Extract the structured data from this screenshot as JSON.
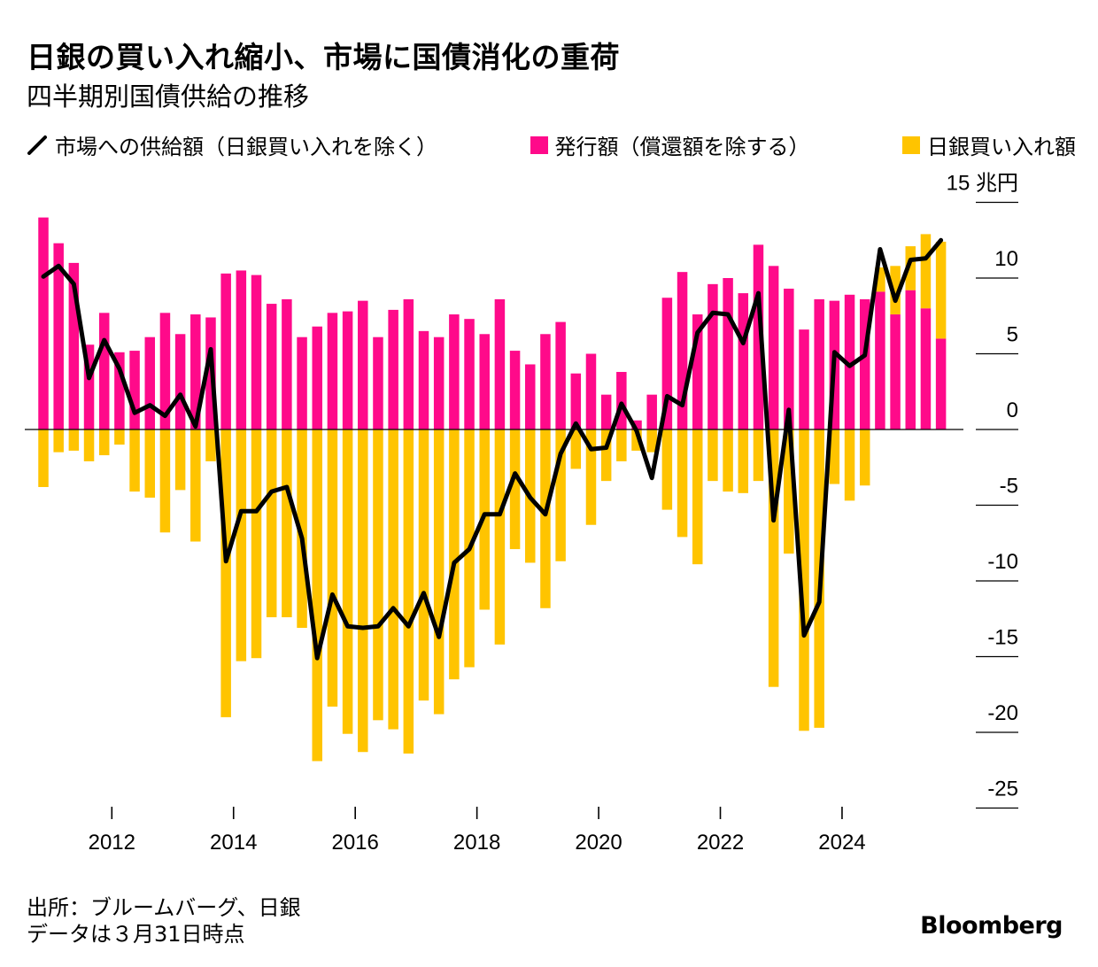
{
  "title": "日銀の買い入れ縮小、市場に国債消化の重荷",
  "subtitle": "四半期別国債供給の推移",
  "legend": {
    "supply": "市場への供給額（日銀買い入れを除く）",
    "issuance": "発行額（償還額を除する）",
    "boj": "日銀買い入れ額"
  },
  "source": {
    "line1": "出所：ブルームバーグ、日銀",
    "line2": "データは３月31日時点"
  },
  "brand": "Bloomberg",
  "colors": {
    "issuance": "#ff0a8a",
    "boj": "#ffc400",
    "supply": "#000000"
  },
  "chart_data": {
    "type": "bar",
    "title": "四半期別国債供給の推移",
    "unit_label": "15 兆円",
    "ylim": [
      -25,
      15
    ],
    "y_ticks": [
      "15",
      "10",
      "5",
      "0",
      "-5",
      "-10",
      "-15",
      "-20",
      "-25"
    ],
    "x_tick_labels": [
      "2012",
      "2014",
      "2016",
      "2018",
      "2020",
      "2022",
      "2024"
    ],
    "x_start_year": 2010.75,
    "series": [
      {
        "name": "発行額（償還額を除する）",
        "values": [
          14.0,
          12.3,
          11.0,
          5.6,
          7.7,
          5.1,
          5.2,
          6.1,
          7.7,
          6.3,
          7.6,
          7.4,
          10.3,
          10.5,
          10.2,
          8.3,
          8.6,
          6.1,
          6.8,
          7.7,
          7.8,
          8.5,
          6.1,
          7.9,
          8.6,
          6.5,
          6.1,
          7.6,
          7.3,
          6.3,
          8.6,
          5.2,
          4.3,
          6.3,
          7.1,
          3.7,
          5.0,
          2.3,
          3.8,
          0.6,
          2.3,
          8.7,
          10.4,
          7.6,
          9.6,
          10.0,
          9.0,
          12.2,
          10.8,
          9.3,
          6.6,
          8.6,
          8.5,
          8.9,
          8.6,
          9.1,
          7.6,
          9.2,
          8.0,
          6.0
        ],
        "color": "#ff0a8a"
      },
      {
        "name": "日銀買い入れ額",
        "values": [
          -3.8,
          -1.5,
          -1.4,
          -2.1,
          -1.7,
          -1.0,
          -4.1,
          -4.5,
          -6.8,
          -4.0,
          -7.4,
          -2.1,
          -19.0,
          -15.3,
          -15.1,
          -12.4,
          -12.4,
          -13.1,
          -21.9,
          -18.3,
          -20.1,
          -21.3,
          -19.2,
          -19.8,
          -21.4,
          -17.9,
          -18.8,
          -16.5,
          -15.7,
          -11.9,
          -14.2,
          -7.9,
          -8.8,
          -11.8,
          -8.7,
          -2.6,
          -6.3,
          -3.4,
          -2.1,
          -1.4,
          -1.5,
          -5.3,
          -7.1,
          -8.9,
          -3.4,
          -4.1,
          -4.2,
          -3.4,
          -17.0,
          -8.2,
          -19.9,
          -19.7,
          -3.6,
          -4.7,
          -3.7,
          1.6,
          3.2,
          2.9,
          4.9,
          6.4
        ]
      },
      {
        "name": "市場への供給額（日銀買い入れを除く）",
        "values": [
          10.1,
          10.8,
          9.6,
          3.4,
          5.9,
          4.0,
          1.1,
          1.6,
          0.9,
          2.3,
          0.2,
          5.3,
          -8.7,
          -5.4,
          -5.4,
          -4.1,
          -3.8,
          -7.2,
          -15.1,
          -10.9,
          -13.0,
          -13.1,
          -13.0,
          -11.8,
          -13.0,
          -10.8,
          -13.7,
          -8.8,
          -7.9,
          -5.6,
          -5.6,
          -2.9,
          -4.5,
          -5.6,
          -1.6,
          0.4,
          -1.3,
          -1.2,
          1.7,
          -0.1,
          -3.2,
          2.2,
          1.6,
          6.4,
          7.7,
          7.6,
          5.7,
          9.0,
          -6.0,
          1.3,
          -13.6,
          -11.4,
          5.1,
          4.2,
          4.9,
          11.9,
          8.5,
          11.2,
          11.3,
          12.5
        ]
      }
    ]
  }
}
